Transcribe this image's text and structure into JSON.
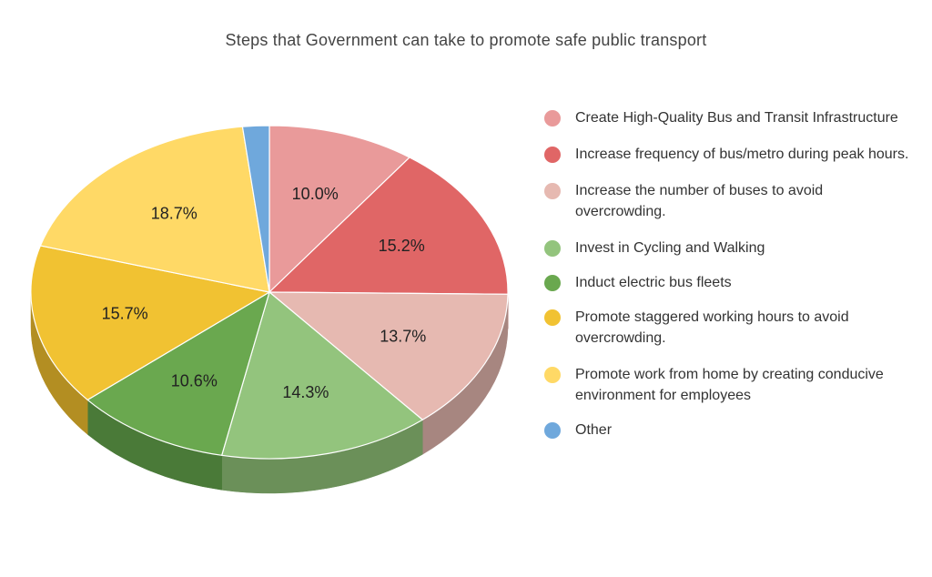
{
  "chart_data": {
    "type": "pie",
    "title": "Steps that Government can take to promote safe public transport",
    "slices": [
      {
        "label": "Create High-Quality Bus and Transit Infrastructure",
        "value": 10.0,
        "display": "10.0%",
        "color": "#e99a9a",
        "side_color": "#b87a7a"
      },
      {
        "label": "Increase frequency of bus/metro during peak hours.",
        "value": 15.2,
        "display": "15.2%",
        "color": "#e06666",
        "side_color": "#a84d4d"
      },
      {
        "label": "Increase the number of buses to avoid overcrowding.",
        "value": 13.7,
        "display": "13.7%",
        "color": "#e6b9b1",
        "side_color": "#a78680"
      },
      {
        "label": "Invest in Cycling and Walking",
        "value": 14.3,
        "display": "14.3%",
        "color": "#93c47d",
        "side_color": "#6b9059"
      },
      {
        "label": "Induct electric bus fleets",
        "value": 10.6,
        "display": "10.6%",
        "color": "#6aa84f",
        "side_color": "#4a7a38"
      },
      {
        "label": "Promote staggered working hours to avoid overcrowding.",
        "value": 15.7,
        "display": "15.7%",
        "color": "#f1c232",
        "side_color": "#b38e22"
      },
      {
        "label": "Promote work from home by creating conducive environment for employees",
        "value": 18.7,
        "display": "18.7%",
        "color": "#ffd966",
        "side_color": "#c9a94a"
      },
      {
        "label": "Other",
        "value": 1.8,
        "display": "",
        "color": "#6fa8dc",
        "side_color": "#4e7ba3"
      }
    ],
    "legend_position": "right"
  }
}
